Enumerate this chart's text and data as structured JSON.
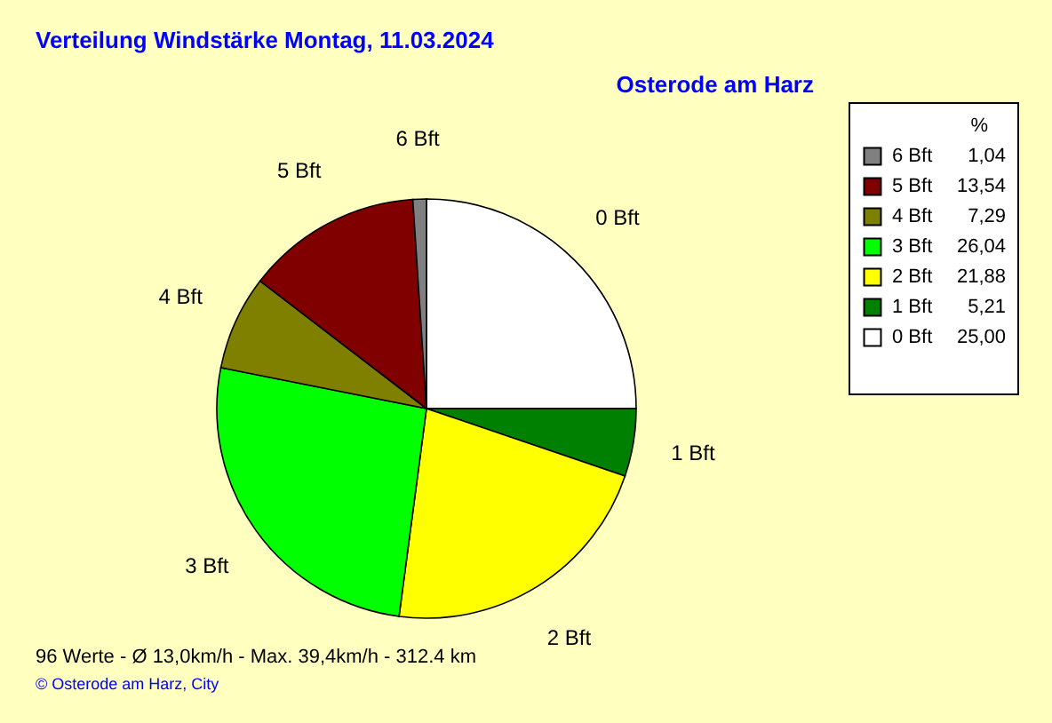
{
  "chart_data": {
    "type": "pie",
    "title": "Verteilung Windstärke  Montag, 11.03.2024",
    "subtitle": "Osterode am Harz",
    "categories": [
      "0 Bft",
      "1 Bft",
      "2 Bft",
      "3 Bft",
      "4 Bft",
      "5 Bft",
      "6 Bft"
    ],
    "values": [
      25.0,
      5.21,
      21.88,
      26.04,
      7.29,
      13.54,
      1.04
    ],
    "colors": [
      "#ffffff",
      "#008000",
      "#ffff00",
      "#00ff00",
      "#808000",
      "#800000",
      "#808080"
    ],
    "value_labels": [
      "25,00",
      "5,21",
      "21,88",
      "26,04",
      "7,29",
      "13,54",
      "1,04"
    ],
    "legend_title": "%",
    "legend": "top right",
    "annotations": [
      "96 Werte  -  Ø 13,0km/h  -  Max. 39,4km/h  -  312.4 km",
      "© Osterode am Harz, City"
    ]
  }
}
